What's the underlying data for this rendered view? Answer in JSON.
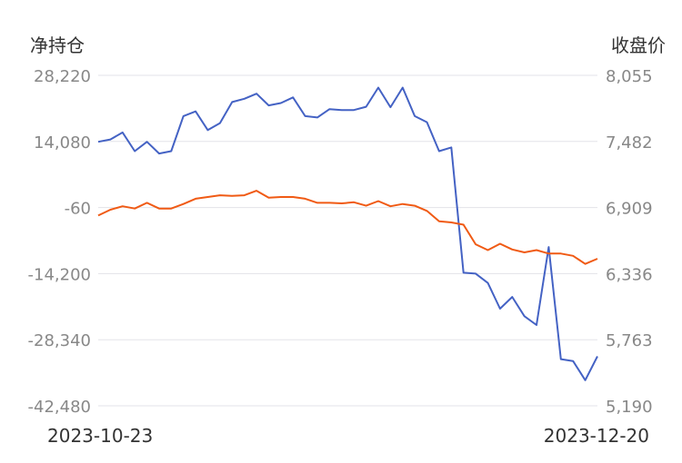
{
  "chart_data": {
    "type": "line",
    "left_axis_title": "净持仓",
    "right_axis_title": "收盘价",
    "left_ticks": [
      "28,220",
      "14,080",
      "-60",
      "-14,200",
      "-28,340",
      "-42,480"
    ],
    "right_ticks": [
      "8,055",
      "7,482",
      "6,909",
      "6,336",
      "5,763",
      "5,190"
    ],
    "left_ylim": [
      -42480,
      28220
    ],
    "right_ylim": [
      5190,
      8055
    ],
    "x_start_label": "2023-10-23",
    "x_end_label": "2023-12-20",
    "grid": true,
    "series": [
      {
        "axis": "left",
        "color": "#4462c4",
        "values": [
          14000,
          14500,
          16000,
          12000,
          14000,
          11500,
          12000,
          19500,
          20500,
          16500,
          18000,
          22500,
          23200,
          24300,
          21800,
          22300,
          23500,
          19500,
          19200,
          21000,
          20800,
          20800,
          21500,
          25600,
          21400,
          25600,
          19500,
          18200,
          12000,
          12800,
          -14000,
          -14200,
          -16200,
          -21700,
          -19200,
          -23300,
          -25200,
          -8500,
          -32500,
          -32900,
          -37000,
          -31900
        ]
      },
      {
        "axis": "right",
        "color": "#f05a14",
        "values": [
          6840,
          6890,
          6920,
          6900,
          6950,
          6900,
          6900,
          6940,
          6985,
          7000,
          7015,
          7010,
          7015,
          7055,
          6995,
          7000,
          7000,
          6985,
          6950,
          6950,
          6945,
          6955,
          6925,
          6965,
          6920,
          6940,
          6925,
          6880,
          6790,
          6780,
          6760,
          6590,
          6540,
          6595,
          6545,
          6520,
          6540,
          6510,
          6510,
          6490,
          6420,
          6465
        ]
      }
    ]
  }
}
